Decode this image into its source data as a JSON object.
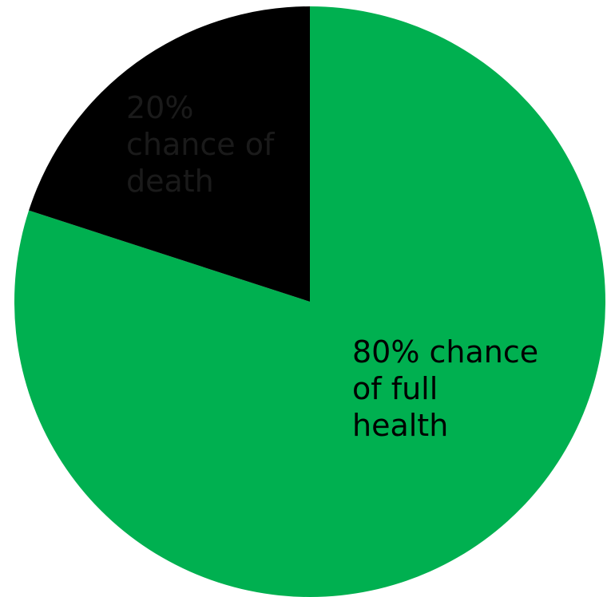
{
  "chart_data": {
    "type": "pie",
    "slices": [
      {
        "value": 80,
        "color": "#00b050",
        "label_lines": [
          "80% chance",
          "of full",
          "health"
        ]
      },
      {
        "value": 20,
        "color": "#000000",
        "label_lines": [
          "20%",
          "chance of",
          "death"
        ],
        "label_color": "#1a1a1a"
      }
    ],
    "start_angle": "12 o'clock",
    "direction": "clockwise",
    "legend": "none"
  }
}
